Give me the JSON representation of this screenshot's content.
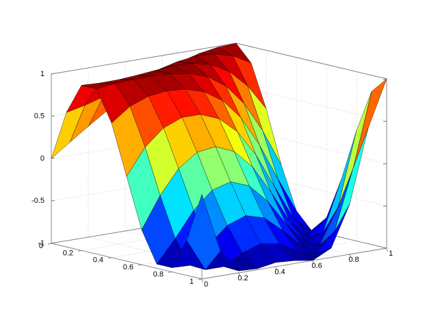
{
  "chart_data": {
    "type": "surface",
    "x": [
      0,
      0.1,
      0.2,
      0.3,
      0.4,
      0.5,
      0.6,
      0.7,
      0.8,
      0.9,
      1
    ],
    "y": [
      0,
      0.1,
      0.2,
      0.3,
      0.4,
      0.5,
      0.6,
      0.7,
      0.8,
      0.9,
      1
    ],
    "z": [
      [
        0,
        0.156,
        0.309,
        0.454,
        0.588,
        0.707,
        0.809,
        0.891,
        0.951,
        0.988,
        1
      ],
      [
        0.588,
        0.637,
        0.7,
        0.771,
        0.844,
        0.914,
        0.969,
        0.998,
        0.989,
        0.93,
        0.809
      ],
      [
        0.951,
        0.941,
        0.944,
        0.96,
        0.982,
        0.999,
        0.992,
        0.941,
        0.821,
        0.613,
        0.309
      ],
      [
        0.951,
        0.982,
        0.992,
        0.992,
        0.982,
        0.951,
        0.876,
        0.729,
        0.482,
        0.125,
        -0.309
      ],
      [
        0.588,
        0.75,
        0.833,
        0.861,
        0.844,
        0.777,
        0.637,
        0.397,
        0.042,
        -0.397,
        -0.809
      ],
      [
        0,
        0.309,
        0.5,
        0.588,
        0.588,
        0.5,
        0.309,
        0,
        -0.407,
        -0.809,
        -1
      ],
      [
        -0.588,
        -0.218,
        0.063,
        0.218,
        0.249,
        0.156,
        -0.063,
        -0.397,
        -0.771,
        -0.996,
        -0.809
      ],
      [
        -0.951,
        -0.685,
        -0.388,
        -0.187,
        -0.125,
        -0.208,
        -0.426,
        -0.729,
        -0.974,
        -0.905,
        -0.309
      ],
      [
        -0.951,
        -0.96,
        -0.757,
        -0.562,
        -0.482,
        -0.545,
        -0.729,
        -0.941,
        -0.974,
        -0.562,
        0.309
      ],
      [
        -0.588,
        -0.969,
        -0.969,
        -0.844,
        -0.771,
        -0.809,
        -0.93,
        -0.998,
        -0.771,
        -0.063,
        0.809
      ],
      [
        0,
        -0.707,
        -0.978,
        -0.988,
        -0.951,
        -0.966,
        -1,
        -0.891,
        -0.407,
        0.454,
        1
      ]
    ],
    "xlim": [
      0,
      1
    ],
    "ylim": [
      0,
      1
    ],
    "zlim": [
      -1,
      1
    ],
    "xticks": [
      0,
      0.2,
      0.4,
      0.6,
      0.8,
      1
    ],
    "yticks": [
      0,
      0.2,
      0.4,
      0.6,
      0.8,
      1
    ],
    "zticks": [
      -1,
      -0.5,
      0,
      0.5,
      1
    ],
    "colormap": "jet",
    "grid": true
  }
}
